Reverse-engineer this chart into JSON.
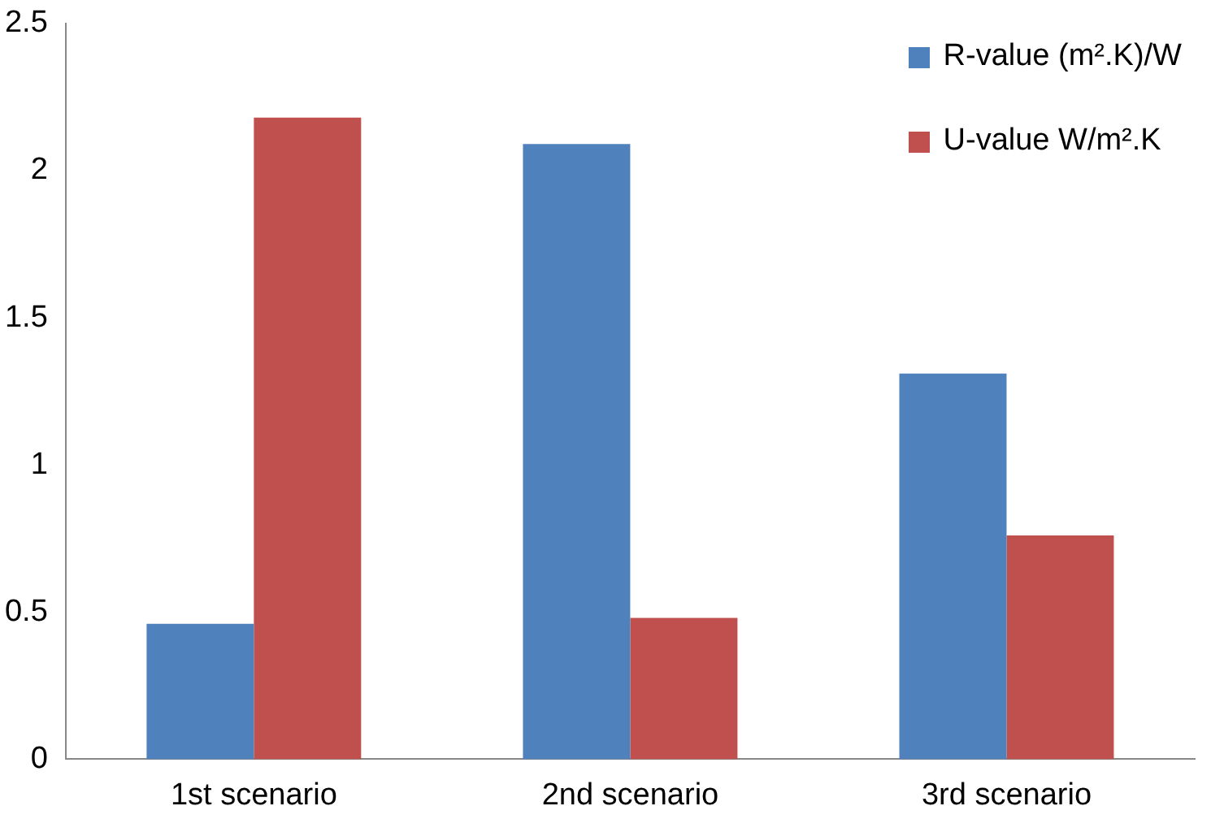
{
  "chart_data": {
    "type": "bar",
    "categories": [
      "1st scenario",
      "2nd scenario",
      "3rd scenario"
    ],
    "series": [
      {
        "name": "R-value (m².K)/W",
        "color": "#4f81bd",
        "values": [
          0.46,
          2.09,
          1.31
        ]
      },
      {
        "name": "U-value W/m².K",
        "color": "#c0504d",
        "values": [
          2.18,
          0.48,
          0.76
        ]
      }
    ],
    "ylim": [
      0,
      2.5
    ],
    "yticks": [
      0,
      0.5,
      1,
      1.5,
      2,
      2.5
    ],
    "grid": false,
    "legend": "top right"
  }
}
